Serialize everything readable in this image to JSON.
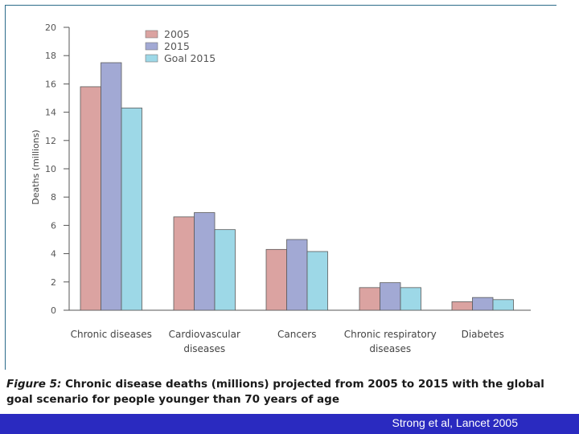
{
  "chart_data": {
    "type": "bar",
    "categories": [
      [
        "Chronic diseases"
      ],
      [
        "Cardiovascular",
        "diseases"
      ],
      [
        "Cancers"
      ],
      [
        "Chronic respiratory",
        "diseases"
      ],
      [
        "Diabetes"
      ]
    ],
    "series": [
      {
        "name": "2005",
        "color": "#dba3a1",
        "values": [
          15.8,
          6.6,
          4.3,
          1.6,
          0.6
        ]
      },
      {
        "name": "2015",
        "color": "#a2a9d4",
        "values": [
          17.5,
          6.9,
          5.0,
          1.95,
          0.9
        ]
      },
      {
        "name": "Goal 2015",
        "color": "#9dd8e7",
        "values": [
          14.3,
          5.7,
          4.15,
          1.6,
          0.75
        ]
      }
    ],
    "ylabel": "Deaths (millions)",
    "ylim": [
      0,
      20
    ],
    "yticks": [
      0,
      2,
      4,
      6,
      8,
      10,
      12,
      14,
      16,
      18,
      20
    ],
    "grid": false,
    "legend_position": "top-center"
  },
  "caption": {
    "figure_label": "Figure 5:",
    "text": " Chronic disease deaths (millions) projected from 2005 to 2015 with the global goal scenario for people younger than 70 years of age"
  },
  "footer": {
    "citation": "Strong et al, Lancet 2005"
  }
}
